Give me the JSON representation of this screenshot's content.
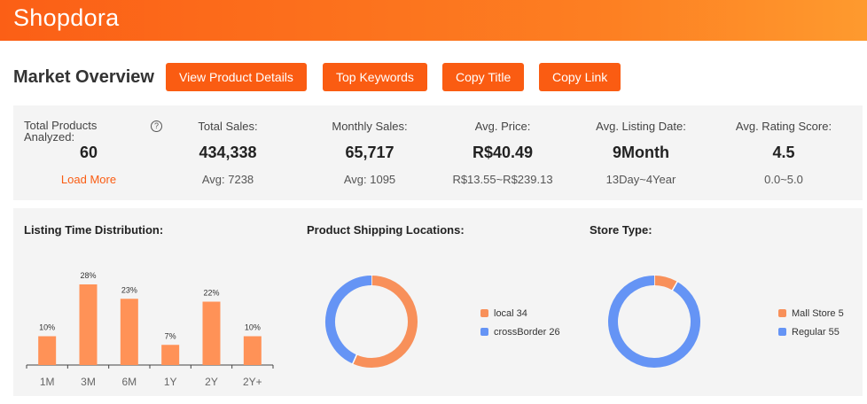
{
  "header": {
    "logo": "Shopdora"
  },
  "page": {
    "title": "Market Overview"
  },
  "buttons": {
    "view_product_details": "View Product Details",
    "top_keywords": "Top Keywords",
    "copy_title": "Copy Title",
    "copy_link": "Copy Link"
  },
  "stats": {
    "total_products": {
      "label": "Total Products Analyzed:",
      "value": "60",
      "link": "Load More",
      "icon": "help-circle-icon"
    },
    "total_sales": {
      "label": "Total Sales:",
      "value": "434,338",
      "sub": "Avg: 7238"
    },
    "monthly_sales": {
      "label": "Monthly Sales:",
      "value": "65,717",
      "sub": "Avg: 1095"
    },
    "avg_price": {
      "label": "Avg. Price:",
      "value": "R$40.49",
      "sub": "R$13.55~R$239.13"
    },
    "avg_listing_date": {
      "label": "Avg. Listing Date:",
      "value": "9Month",
      "sub": "13Day~4Year"
    },
    "avg_rating": {
      "label": "Avg. Rating Score:",
      "value": "4.5",
      "sub": "0.0~5.0"
    }
  },
  "colors": {
    "accent": "#fa5c12",
    "bar": "#ff9257",
    "orange": "#f8905a",
    "blue": "#6594f5"
  },
  "chart_data": [
    {
      "type": "bar",
      "title": "Listing Time Distribution:",
      "categories": [
        "1M",
        "3M",
        "6M",
        "1Y",
        "2Y",
        "2Y+"
      ],
      "values": [
        10,
        28,
        23,
        7,
        22,
        10
      ],
      "labels": [
        "10%",
        "28%",
        "23%",
        "7%",
        "22%",
        "10%"
      ],
      "unit": "%",
      "grid": false
    },
    {
      "type": "pie",
      "title": "Product Shipping Locations:",
      "slices": [
        {
          "name": "local",
          "value": 34,
          "label": "local 34"
        },
        {
          "name": "crossBorder",
          "value": 26,
          "label": "crossBorder 26"
        }
      ],
      "legend": "right"
    },
    {
      "type": "pie",
      "title": "Store Type:",
      "slices": [
        {
          "name": "Mall Store",
          "value": 5,
          "label": "Mall Store 5"
        },
        {
          "name": "Regular",
          "value": 55,
          "label": "Regular 55"
        }
      ],
      "legend": "right"
    }
  ]
}
